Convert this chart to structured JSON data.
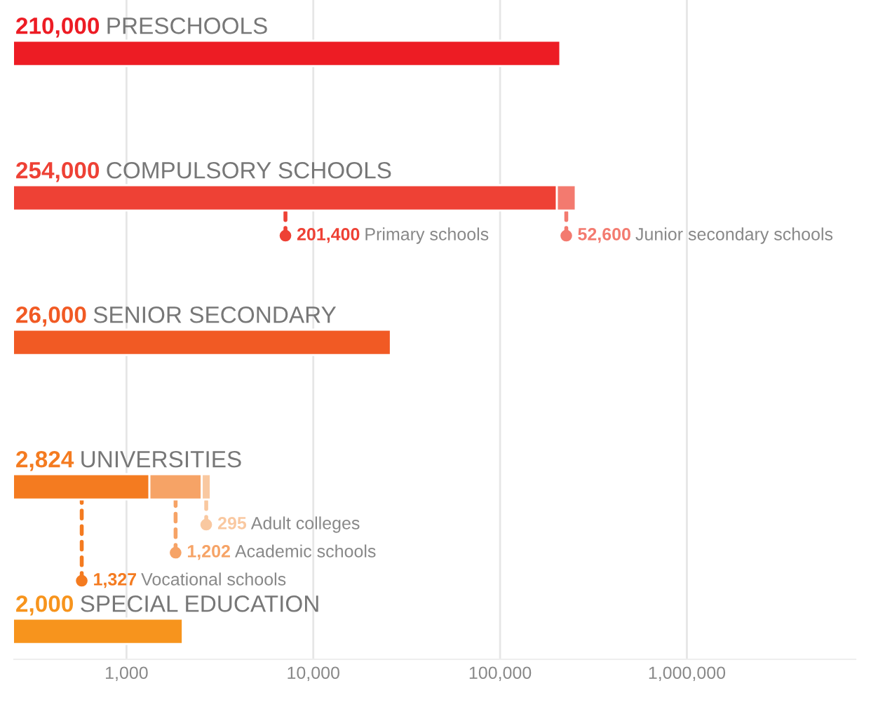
{
  "chart_data": {
    "type": "bar",
    "orientation": "horizontal",
    "stacked": true,
    "log": "x",
    "categories": [
      "PRESCHOOLS",
      "COMPULSORY SCHOOLS",
      "SENIOR SECONDARY",
      "UNIVERSITIES",
      "SPECIAL EDUCATION"
    ],
    "series": [
      {
        "values": [
          210000,
          201400,
          26000,
          1327,
          2000
        ],
        "colors": [
          "#ed1c24",
          "#ee4135",
          "#f15a24",
          "#f47b20",
          "#f7941d"
        ],
        "value_labels": [
          null,
          "201,400",
          null,
          "1,327",
          null
        ]
      },
      {
        "values": [
          null,
          52600,
          null,
          1202,
          null
        ],
        "colors": [
          null,
          "#f37a6f",
          null,
          "#f6a366",
          null
        ],
        "value_labels": [
          null,
          "52,600",
          null,
          "1,202",
          null
        ]
      },
      {
        "values": [
          null,
          null,
          null,
          295,
          null
        ],
        "colors": [
          null,
          null,
          null,
          "#f9c8a0",
          null
        ],
        "value_labels": [
          null,
          null,
          null,
          "295",
          null
        ]
      }
    ],
    "totals": [
      "210,000",
      "254,000",
      "26,000",
      "2,824",
      "2,000"
    ],
    "annotations": [
      "Primary schools",
      "Junior secondary schools",
      "Vocational schools",
      "Academic schools",
      "Adult colleges"
    ],
    "xlim": [
      250,
      8000000
    ],
    "xticks": [
      {
        "value": 1000,
        "label": "1,000"
      },
      {
        "value": 10000,
        "label": "10,000"
      },
      {
        "value": 100000,
        "label": "100,000"
      },
      {
        "value": 1000000,
        "label": "1,000,000"
      }
    ],
    "grid": "x",
    "tick_labels": "x"
  }
}
